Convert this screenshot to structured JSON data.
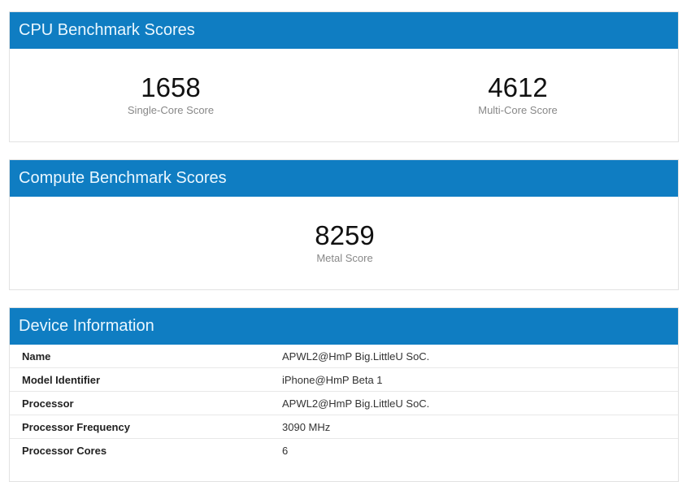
{
  "cpu": {
    "title": "CPU Benchmark Scores",
    "single_core": {
      "value": "1658",
      "label": "Single-Core Score"
    },
    "multi_core": {
      "value": "4612",
      "label": "Multi-Core Score"
    }
  },
  "compute": {
    "title": "Compute Benchmark Scores",
    "metal": {
      "value": "8259",
      "label": "Metal Score"
    }
  },
  "device": {
    "title": "Device Information",
    "rows": [
      {
        "label": "Name",
        "value": "APWL2@HmP Big.LittleU SoC."
      },
      {
        "label": "Model Identifier",
        "value": "iPhone@HmP Beta 1"
      },
      {
        "label": "Processor",
        "value": "APWL2@HmP Big.LittleU SoC."
      },
      {
        "label": "Processor Frequency",
        "value": "3090 MHz"
      },
      {
        "label": "Processor Cores",
        "value": "6"
      }
    ]
  },
  "colors": {
    "header": "#0f7dc2",
    "header_text": "#eaf7ff"
  }
}
